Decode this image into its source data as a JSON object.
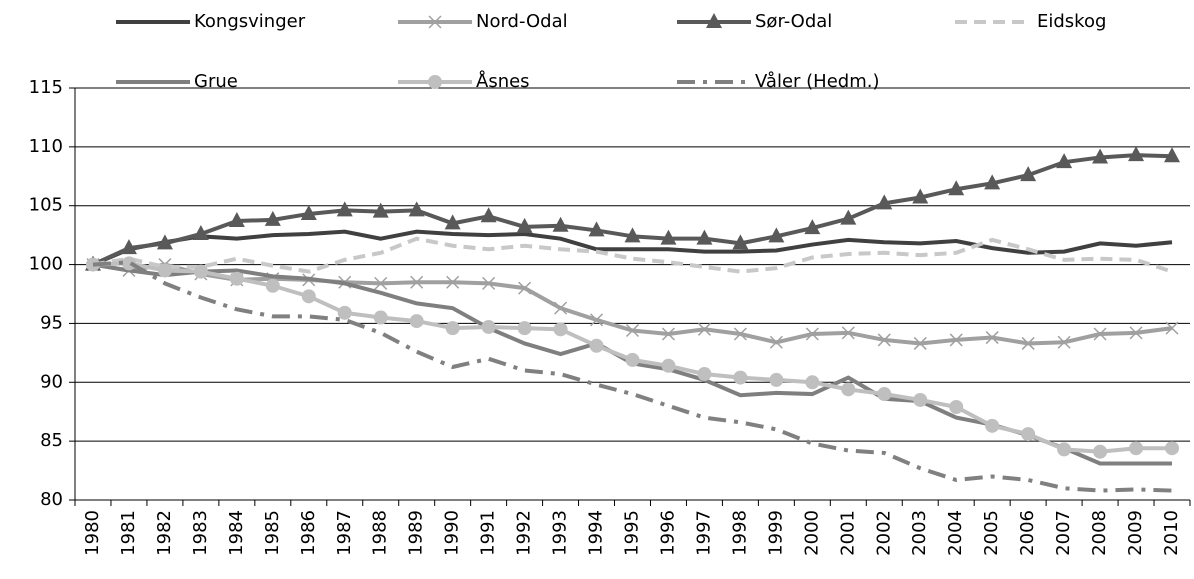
{
  "chart_data": {
    "type": "line",
    "categories": [
      "1980",
      "1981",
      "1982",
      "1983",
      "1984",
      "1985",
      "1986",
      "1987",
      "1988",
      "1989",
      "1990",
      "1991",
      "1992",
      "1993",
      "1994",
      "1995",
      "1996",
      "1997",
      "1998",
      "1999",
      "2000",
      "2001",
      "2002",
      "2003",
      "2004",
      "2005",
      "2006",
      "2007",
      "2008",
      "2009",
      "2010"
    ],
    "ylim": [
      80,
      115
    ],
    "yticks": [
      80,
      85,
      90,
      95,
      100,
      105,
      110,
      115
    ],
    "grid": true,
    "legend": "top",
    "series": [
      {
        "name": "Kongsvinger",
        "color": "#404040",
        "marker": "none",
        "dash": "solid",
        "values": [
          100,
          101.3,
          101.9,
          102.4,
          102.2,
          102.5,
          102.6,
          102.8,
          102.2,
          102.8,
          102.6,
          102.5,
          102.6,
          102.2,
          101.3,
          101.3,
          101.3,
          101.1,
          101.1,
          101.2,
          101.7,
          102.1,
          101.9,
          101.8,
          102.0,
          101.4,
          101.0,
          101.1,
          101.8,
          101.6,
          101.9
        ]
      },
      {
        "name": "Nord-Odal",
        "color": "#a0a0a0",
        "marker": "x",
        "dash": "solid",
        "values": [
          100,
          99.5,
          100.0,
          99.2,
          98.7,
          98.8,
          98.7,
          98.5,
          98.4,
          98.5,
          98.5,
          98.4,
          98.0,
          96.3,
          95.3,
          94.4,
          94.1,
          94.5,
          94.1,
          93.4,
          94.1,
          94.2,
          93.6,
          93.3,
          93.6,
          93.8,
          93.3,
          93.4,
          94.1,
          94.2,
          94.6
        ]
      },
      {
        "name": "Sør-Odal",
        "color": "#595959",
        "marker": "triangle",
        "dash": "solid",
        "values": [
          100,
          101.4,
          101.8,
          102.6,
          103.7,
          103.8,
          104.3,
          104.6,
          104.5,
          104.6,
          103.5,
          104.1,
          103.2,
          103.3,
          102.9,
          102.4,
          102.2,
          102.2,
          101.8,
          102.4,
          103.1,
          103.9,
          105.2,
          105.7,
          106.4,
          106.9,
          107.6,
          108.7,
          109.1,
          109.3,
          109.2
        ]
      },
      {
        "name": "Eidskog",
        "color": "#c8c8c8",
        "marker": "none",
        "dash": "dash",
        "values": [
          100,
          100.5,
          99.8,
          99.8,
          100.5,
          99.9,
          99.4,
          100.4,
          101.0,
          102.2,
          101.6,
          101.3,
          101.6,
          101.3,
          101.1,
          100.5,
          100.2,
          99.8,
          99.4,
          99.7,
          100.6,
          100.9,
          101.0,
          100.8,
          101.0,
          102.1,
          101.3,
          100.4,
          100.5,
          100.4,
          99.4
        ]
      },
      {
        "name": "Grue",
        "color": "#7f7f7f",
        "marker": "none",
        "dash": "solid",
        "values": [
          100,
          99.5,
          99.1,
          99.4,
          99.5,
          99.0,
          98.8,
          98.4,
          97.6,
          96.7,
          96.3,
          94.6,
          93.3,
          92.4,
          93.3,
          91.6,
          91.1,
          90.2,
          88.9,
          89.1,
          89.0,
          90.4,
          88.6,
          88.4,
          87.0,
          86.4,
          85.5,
          84.4,
          83.1,
          83.1,
          83.1
        ]
      },
      {
        "name": "Åsnes",
        "color": "#bfbfbf",
        "marker": "circle",
        "dash": "solid",
        "values": [
          100,
          100.1,
          99.5,
          99.4,
          98.8,
          98.2,
          97.3,
          95.9,
          95.5,
          95.2,
          94.6,
          94.7,
          94.6,
          94.5,
          93.1,
          91.9,
          91.4,
          90.7,
          90.4,
          90.2,
          90.0,
          89.4,
          89.0,
          88.5,
          87.9,
          86.3,
          85.6,
          84.3,
          84.1,
          84.4,
          84.4
        ]
      },
      {
        "name": "Våler (Hedm.)",
        "color": "#808080",
        "marker": "none",
        "dash": "dashdot",
        "values": [
          100,
          100.2,
          98.4,
          97.2,
          96.2,
          95.6,
          95.6,
          95.3,
          94.2,
          92.6,
          91.3,
          92.0,
          91.0,
          90.7,
          89.8,
          89.0,
          88.0,
          87.0,
          86.6,
          86.0,
          84.8,
          84.2,
          84.0,
          82.7,
          81.7,
          82.0,
          81.7,
          81.0,
          80.8,
          80.9,
          80.8
        ]
      }
    ]
  }
}
